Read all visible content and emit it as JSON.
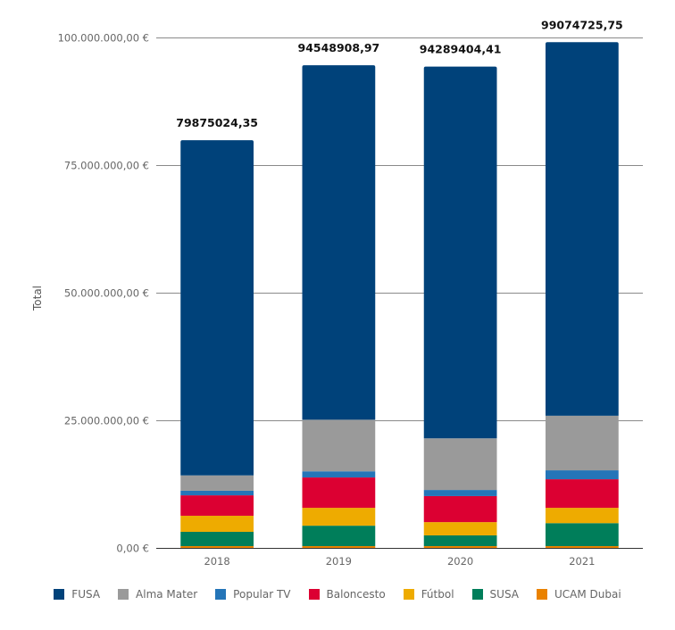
{
  "chart_data": {
    "type": "bar",
    "stacked": true,
    "title": "",
    "xlabel": "",
    "ylabel": "Total",
    "ylim": [
      0,
      100000000
    ],
    "yticks": [
      0,
      25000000,
      50000000,
      75000000,
      100000000
    ],
    "ytick_labels": [
      "0,00 €",
      "25.000.000,00 €",
      "50.000.000,00 €",
      "75.000.000,00 €",
      "100.000.000,00 €"
    ],
    "grid": true,
    "legend_position": "bottom",
    "categories": [
      "2018",
      "2019",
      "2020",
      "2021"
    ],
    "totals": [
      79875024.35,
      94548908.97,
      94289404.41,
      99074725.75
    ],
    "total_labels": [
      "79875024,35",
      "94548908,97",
      "94289404,41",
      "99074725,75"
    ],
    "series": [
      {
        "name": "UCAM Dubai",
        "color": "#ea8200",
        "values": [
          350000,
          350000,
          350000,
          350000
        ]
      },
      {
        "name": "SUSA",
        "color": "#007e5a",
        "values": [
          2800000,
          4000000,
          2100000,
          4500000
        ]
      },
      {
        "name": "Fútbol",
        "color": "#eeab00",
        "values": [
          3150000,
          3500000,
          2600000,
          3000000
        ]
      },
      {
        "name": "Baloncesto",
        "color": "#dc0032",
        "values": [
          4000000,
          5950000,
          5100000,
          5600000
        ]
      },
      {
        "name": "Popular TV",
        "color": "#2475b8",
        "values": [
          900000,
          1200000,
          1200000,
          1750000
        ]
      },
      {
        "name": "Alma Mater",
        "color": "#9a9a9a",
        "values": [
          3000000,
          10100000,
          10100000,
          10700000
        ]
      },
      {
        "name": "FUSA",
        "color": "#00427a",
        "values": [
          65675024.35,
          69448908.97,
          72839404.41,
          73174725.75
        ]
      }
    ],
    "legend_order": [
      "FUSA",
      "Alma Mater",
      "Popular TV",
      "Baloncesto",
      "Fútbol",
      "SUSA",
      "UCAM Dubai"
    ]
  },
  "legend": [
    {
      "label": "FUSA",
      "color": "#00427a"
    },
    {
      "label": "Alma Mater",
      "color": "#9a9a9a"
    },
    {
      "label": "Popular TV",
      "color": "#2475b8"
    },
    {
      "label": "Baloncesto",
      "color": "#dc0032"
    },
    {
      "label": "Fútbol",
      "color": "#eeab00"
    },
    {
      "label": "SUSA",
      "color": "#007e5a"
    },
    {
      "label": "UCAM Dubai",
      "color": "#ea8200"
    }
  ]
}
